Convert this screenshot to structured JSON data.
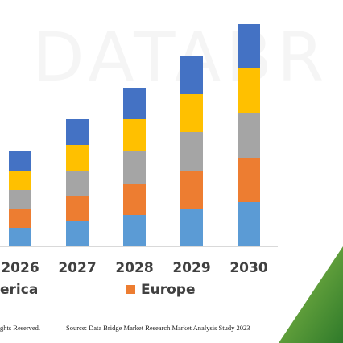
{
  "chart_data": {
    "type": "stacked-bar",
    "watermark": "DATABR",
    "categories": [
      "2026",
      "2027",
      "2028",
      "2029",
      "2030"
    ],
    "series": [
      {
        "name": "erica",
        "color": "#5b9bd5",
        "values": [
          23,
          31,
          39,
          47,
          55
        ]
      },
      {
        "name": "Europe",
        "color": "#ed7d31",
        "values": [
          24,
          32,
          39,
          47,
          55
        ]
      },
      {
        "color": "#a5a5a5",
        "values": [
          23,
          31,
          40,
          48,
          56
        ]
      },
      {
        "color": "#ffc000",
        "values": [
          24,
          32,
          40,
          47,
          55
        ]
      },
      {
        "color": "#4472c4",
        "values": [
          24,
          32,
          39,
          48,
          55
        ]
      }
    ],
    "ylim": [
      0,
      276
    ],
    "footer": {
      "rights": "ghts Reserved.",
      "source": "Source: Data Bridge Market Research Market Analysis Study 2023"
    }
  }
}
